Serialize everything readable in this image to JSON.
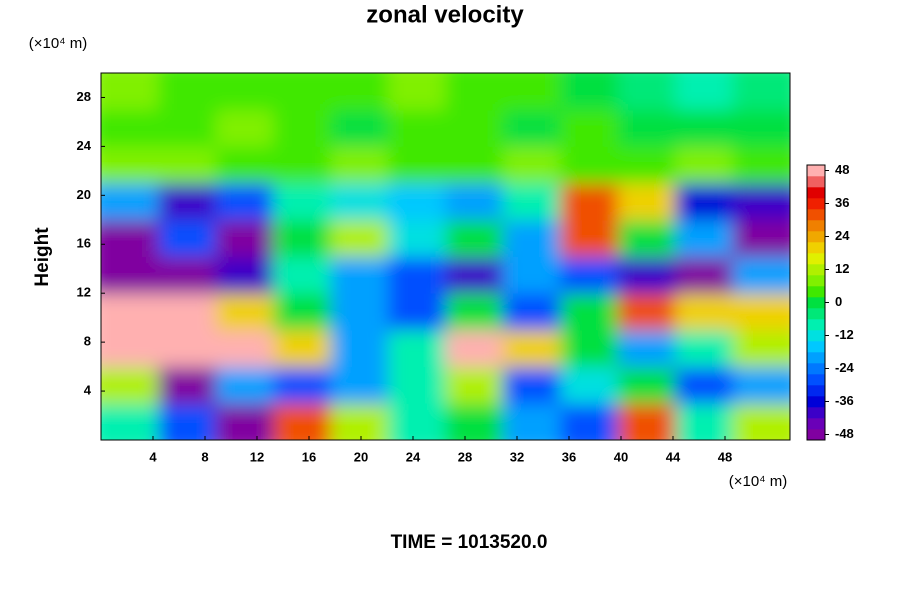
{
  "chart_data": {
    "type": "heatmap",
    "title": "zonal velocity",
    "ylabel": "Height",
    "xunit": "(×10⁴ m)",
    "yunit": "(×10⁴ m)",
    "footer": "TIME = 1013520.0",
    "xlim": [
      0,
      53
    ],
    "ylim": [
      0,
      30
    ],
    "xticks": [
      4,
      8,
      12,
      16,
      20,
      24,
      28,
      32,
      36,
      40,
      44,
      48
    ],
    "yticks": [
      4,
      8,
      12,
      16,
      20,
      24,
      28
    ],
    "clim": [
      -50,
      50
    ],
    "cticks": [
      -48,
      -36,
      -24,
      -12,
      0,
      12,
      24,
      36,
      48
    ],
    "colors": [
      "#8000a0",
      "#6a00b8",
      "#3c00c8",
      "#0000d8",
      "#0028f0",
      "#0050ff",
      "#0078ff",
      "#00a0ff",
      "#00c8ff",
      "#00e0e0",
      "#00f0b0",
      "#00e878",
      "#00e040",
      "#40e800",
      "#80f000",
      "#b0f000",
      "#e0f000",
      "#f0d000",
      "#f0a800",
      "#f08000",
      "#f05000",
      "#f02000",
      "#e00000",
      "#f06060",
      "#ffb0b0"
    ],
    "z": [
      [
        -10,
        -30,
        -48,
        30,
        10,
        -10,
        0,
        -20,
        -30,
        30,
        -10,
        10
      ],
      [
        10,
        -48,
        -20,
        -30,
        -20,
        -8,
        10,
        -30,
        -12,
        0,
        -30,
        -20
      ],
      [
        48,
        48,
        48,
        20,
        -20,
        -10,
        48,
        20,
        0,
        -20,
        -10,
        10
      ],
      [
        48,
        48,
        20,
        0,
        -20,
        -30,
        0,
        -30,
        0,
        30,
        20,
        20
      ],
      [
        -48,
        -48,
        -40,
        -10,
        -20,
        -30,
        -40,
        -20,
        -30,
        -40,
        -48,
        -20
      ],
      [
        -48,
        -30,
        -48,
        0,
        10,
        -12,
        0,
        -20,
        30,
        0,
        -20,
        -48
      ],
      [
        -20,
        -40,
        -30,
        -10,
        -12,
        -16,
        -20,
        -8,
        30,
        20,
        -36,
        -40
      ],
      [
        8,
        6,
        4,
        2,
        6,
        4,
        2,
        6,
        4,
        2,
        8,
        4
      ],
      [
        2,
        4,
        6,
        2,
        0,
        4,
        2,
        0,
        2,
        0,
        -2,
        0
      ],
      [
        6,
        4,
        4,
        2,
        4,
        6,
        4,
        2,
        0,
        -4,
        -8,
        -6
      ]
    ]
  }
}
